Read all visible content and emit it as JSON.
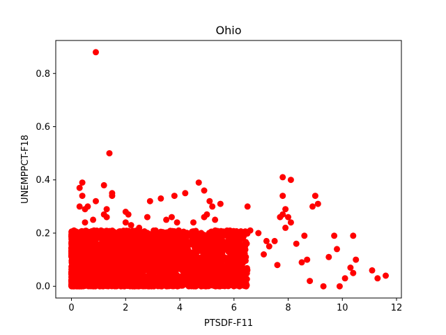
{
  "chart_data": {
    "type": "scatter",
    "title": "Ohio",
    "xlabel": "PTSDF-F11",
    "ylabel": "UNEMPPCT-F18",
    "xlim": [
      -0.58,
      12.18
    ],
    "ylim": [
      -0.044,
      0.924
    ],
    "xticks": [
      0,
      2,
      4,
      6,
      8,
      10,
      12
    ],
    "xtick_labels": [
      "0",
      "2",
      "4",
      "6",
      "8",
      "10",
      "12"
    ],
    "yticks": [
      0.0,
      0.2,
      0.4,
      0.6,
      0.8
    ],
    "ytick_labels": [
      "0.0",
      "0.2",
      "0.4",
      "0.6",
      "0.8"
    ],
    "grid": false,
    "marker_color": "#ff0000",
    "dense_cluster": {
      "x_range": [
        0.0,
        6.5
      ],
      "y_range": [
        0.0,
        0.21
      ],
      "description": "thousands of overlapping points"
    },
    "x": [
      0.9,
      1.4,
      0.4,
      0.3,
      0.4,
      0.3,
      0.5,
      0.6,
      0.9,
      1.2,
      1.3,
      1.5,
      1.5,
      1.2,
      1.3,
      0.8,
      0.5,
      2.0,
      2.1,
      2.0,
      2.9,
      3.3,
      3.8,
      4.2,
      4.7,
      4.9,
      5.1,
      5.2,
      5.5,
      5.0,
      4.9,
      4.5,
      5.3,
      3.7,
      3.5,
      3.9,
      2.8,
      2.5,
      2.2,
      6.5,
      7.8,
      7.8,
      8.1,
      7.9,
      7.8,
      8.0,
      8.1,
      7.7,
      7.9,
      8.9,
      9.0,
      9.1,
      8.6,
      9.7,
      10.4,
      9.8,
      10.5,
      11.1,
      11.3,
      11.6,
      10.1,
      9.9,
      9.3,
      8.8,
      7.3,
      7.5,
      6.6,
      6.9,
      7.2,
      8.3,
      8.5,
      8.7,
      9.5,
      10.3,
      10.4,
      7.1,
      7.6,
      5.9,
      6.2
    ],
    "y": [
      0.88,
      0.5,
      0.39,
      0.37,
      0.34,
      0.3,
      0.29,
      0.3,
      0.32,
      0.38,
      0.29,
      0.35,
      0.34,
      0.27,
      0.26,
      0.25,
      0.24,
      0.28,
      0.27,
      0.24,
      0.32,
      0.33,
      0.34,
      0.35,
      0.39,
      0.36,
      0.32,
      0.3,
      0.31,
      0.27,
      0.26,
      0.24,
      0.25,
      0.26,
      0.25,
      0.24,
      0.26,
      0.22,
      0.23,
      0.3,
      0.41,
      0.34,
      0.4,
      0.29,
      0.27,
      0.26,
      0.24,
      0.26,
      0.22,
      0.3,
      0.34,
      0.31,
      0.19,
      0.19,
      0.19,
      0.14,
      0.1,
      0.06,
      0.03,
      0.04,
      0.03,
      0.0,
      0.0,
      0.02,
      0.15,
      0.17,
      0.21,
      0.2,
      0.17,
      0.16,
      0.09,
      0.1,
      0.11,
      0.07,
      0.05,
      0.12,
      0.08,
      0.17,
      0.18
    ]
  }
}
